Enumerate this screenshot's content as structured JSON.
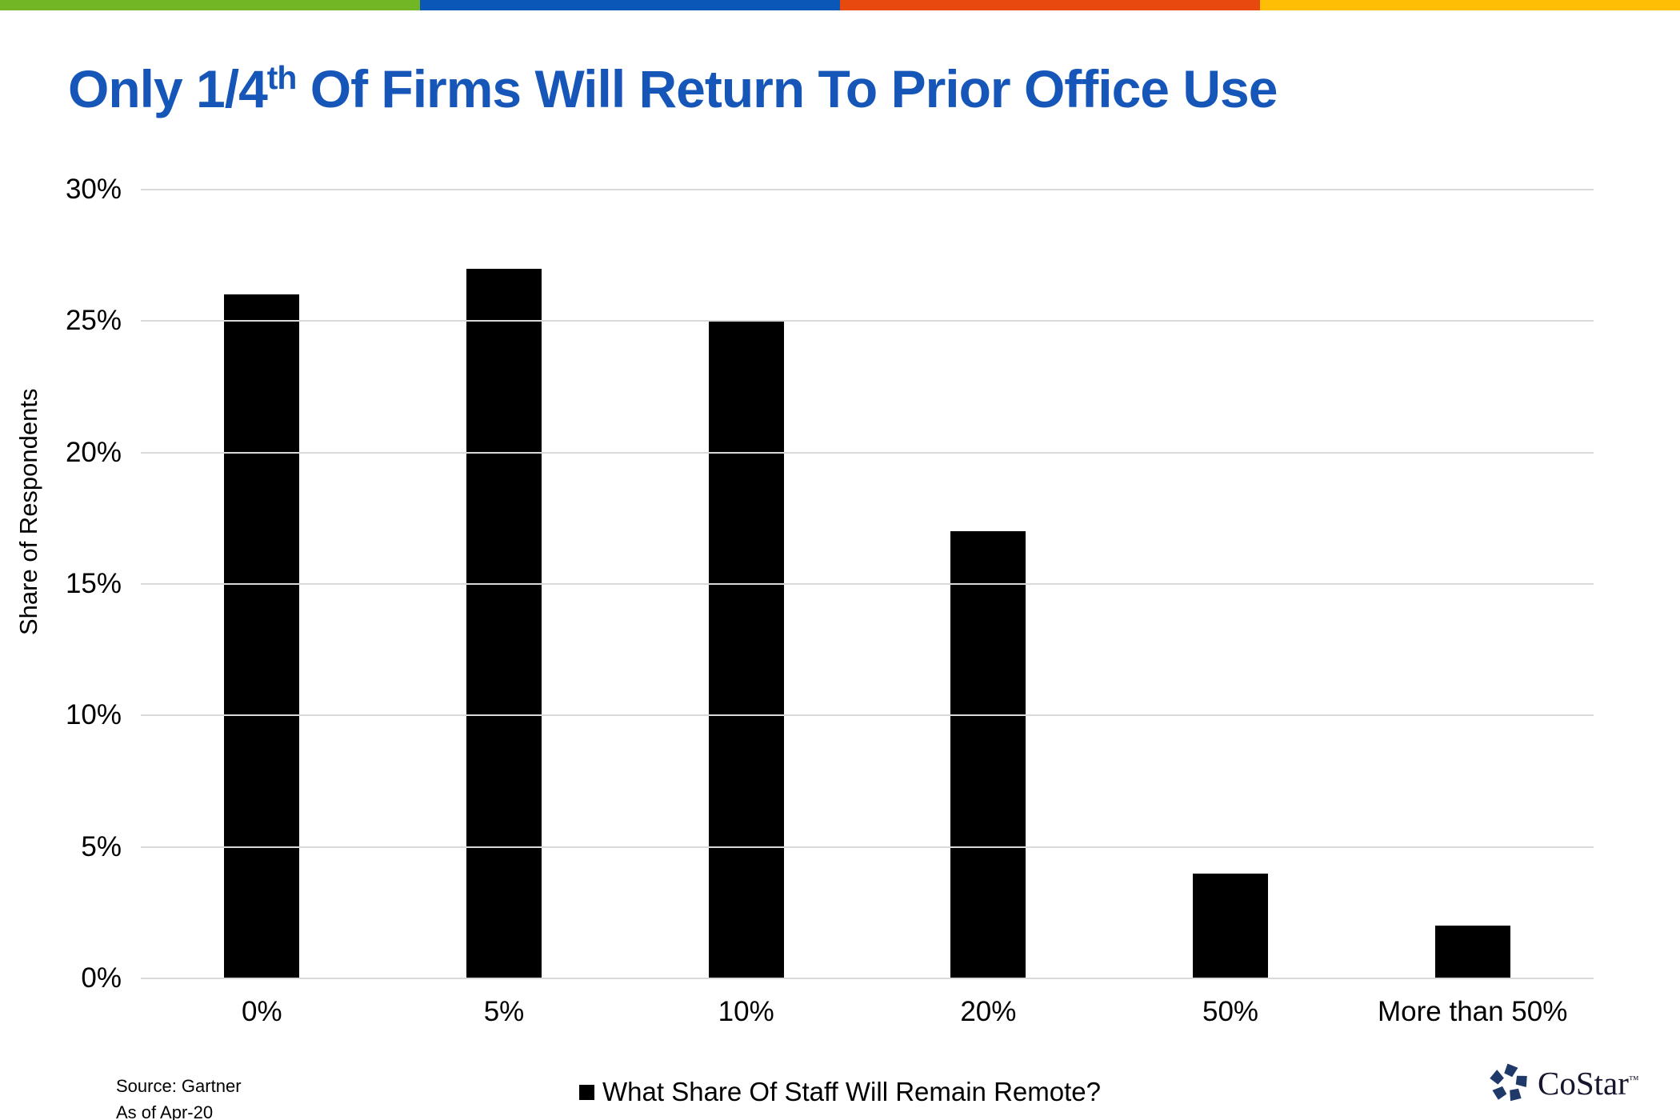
{
  "accent_stripe": {
    "colors": [
      "#72B626",
      "#0B57B8",
      "#E8490E",
      "#FFBE06"
    ]
  },
  "title": {
    "part1": "Only 1/4",
    "sup": "th",
    "part2": " Of Firms Will Return To Prior Office Use",
    "color": "#1656B8"
  },
  "chart_data": {
    "type": "bar",
    "title": "Only 1/4th Of Firms Will Return To Prior Office Use",
    "categories": [
      "0%",
      "5%",
      "10%",
      "20%",
      "50%",
      "More than 50%"
    ],
    "series": [
      {
        "name": "What Share Of Staff Will Remain Remote?",
        "values": [
          26,
          27,
          25,
          17,
          4,
          2
        ]
      }
    ],
    "xlabel": "",
    "ylabel": "Share of Respondents",
    "ylim": [
      0,
      30
    ],
    "ytick_step": 5,
    "ytick_labels": [
      "0%",
      "5%",
      "10%",
      "15%",
      "20%",
      "25%",
      "30%"
    ],
    "grid": true,
    "gridline_color": "#D9D9D9",
    "bar_color": "#000000",
    "legend_position": "bottom-center"
  },
  "footer": {
    "source_line1": "Source: Gartner",
    "source_line2": "As of Apr-20"
  },
  "logo": {
    "name": "CoStar",
    "trademark": "™",
    "icon_color": "#1F3968",
    "text_color": "#15152E"
  }
}
